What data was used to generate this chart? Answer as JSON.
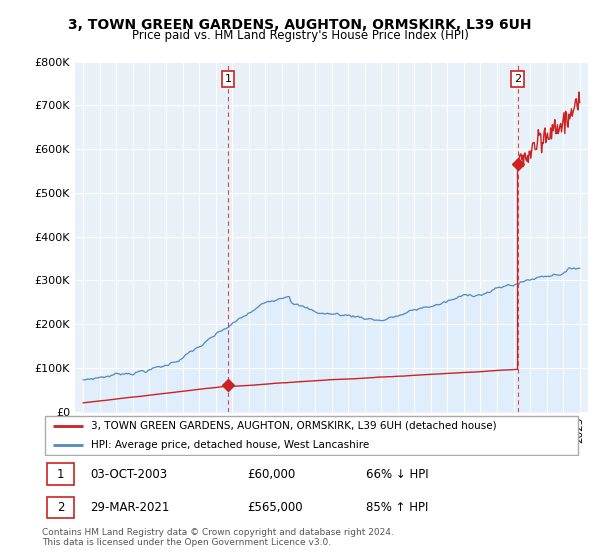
{
  "title": "3, TOWN GREEN GARDENS, AUGHTON, ORMSKIRK, L39 6UH",
  "subtitle": "Price paid vs. HM Land Registry's House Price Index (HPI)",
  "hpi_color": "#5588bb",
  "hpi_fill_color": "#ddeeff",
  "property_color": "#cc2222",
  "ylim": [
    0,
    800000
  ],
  "yticks": [
    0,
    100000,
    200000,
    300000,
    400000,
    500000,
    600000,
    700000,
    800000
  ],
  "ytick_labels": [
    "£0",
    "£100K",
    "£200K",
    "£300K",
    "£400K",
    "£500K",
    "£600K",
    "£700K",
    "£800K"
  ],
  "transaction1_year": 2003.75,
  "transaction1_price": 60000,
  "transaction2_year": 2021.24,
  "transaction2_price": 565000,
  "legend_property": "3, TOWN GREEN GARDENS, AUGHTON, ORMSKIRK, L39 6UH (detached house)",
  "legend_hpi": "HPI: Average price, detached house, West Lancashire",
  "annotation1_date": "03-OCT-2003",
  "annotation1_price": "£60,000",
  "annotation1_hpi": "66% ↓ HPI",
  "annotation2_date": "29-MAR-2021",
  "annotation2_price": "£565,000",
  "annotation2_hpi": "85% ↑ HPI",
  "footer": "Contains HM Land Registry data © Crown copyright and database right 2024.\nThis data is licensed under the Open Government Licence v3.0.",
  "xmin": 1994.5,
  "xmax": 2025.5
}
